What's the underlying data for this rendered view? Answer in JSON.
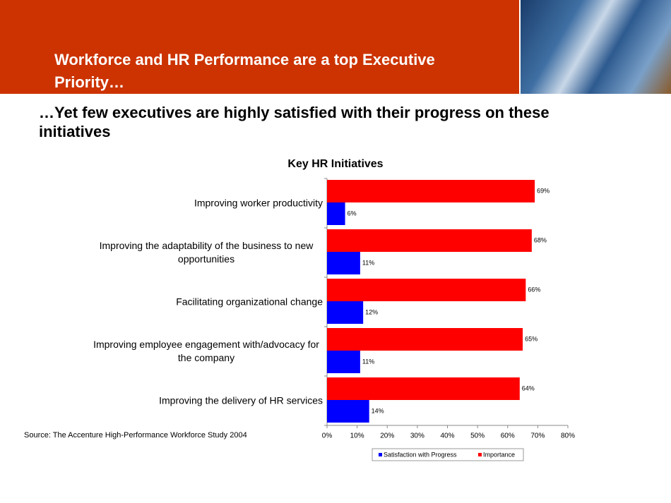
{
  "header": {
    "title": "Workforce and HR Performance are a top Executive Priority…",
    "subtitle": "…Yet few executives are highly satisfied with their progress on these initiatives"
  },
  "source": "Source:  The Accenture High-Performance Workforce Study 2004",
  "chart_data": {
    "type": "bar",
    "orientation": "horizontal",
    "title": "Key HR Initiatives",
    "categories": [
      "Improving worker productivity",
      "Improving the adaptability of the business to new opportunities",
      "Facilitating organizational change",
      "Improving employee engagement with/advocacy for the company",
      "Improving the delivery of HR services"
    ],
    "series": [
      {
        "name": "Satisfaction with Progress",
        "color": "#0000ff",
        "values": [
          6,
          11,
          12,
          11,
          14
        ],
        "value_labels": [
          "6%",
          "11%",
          "12%",
          "11%",
          "14%"
        ]
      },
      {
        "name": "Importance",
        "color": "#ff0000",
        "values": [
          69,
          68,
          66,
          65,
          64
        ],
        "value_labels": [
          "69%",
          "68%",
          "66%",
          "65%",
          "64%"
        ]
      }
    ],
    "xlim": [
      0,
      80
    ],
    "xticks": [
      {
        "value": 0,
        "label": "0%"
      },
      {
        "value": 10,
        "label": "10%"
      },
      {
        "value": 20,
        "label": "20%"
      },
      {
        "value": 30,
        "label": "30%"
      },
      {
        "value": 40,
        "label": "40%"
      },
      {
        "value": 50,
        "label": "50%"
      },
      {
        "value": 60,
        "label": "60%"
      },
      {
        "value": 70,
        "label": "70%"
      },
      {
        "value": 80,
        "label": "80%"
      }
    ],
    "grid": false,
    "legend": "bottom"
  }
}
